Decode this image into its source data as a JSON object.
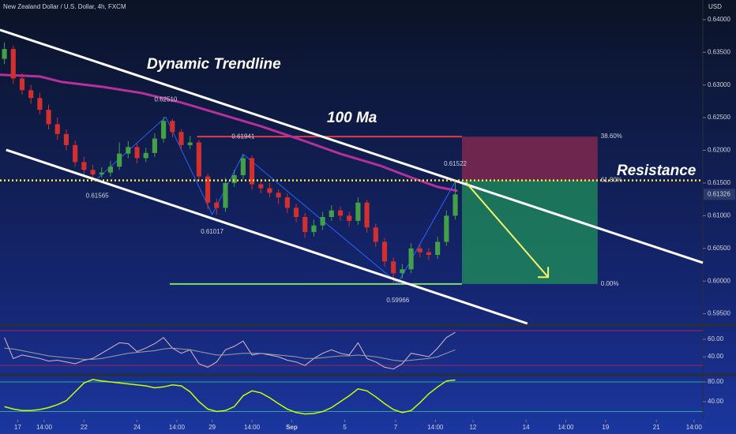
{
  "chart_data": {
    "type": "candlestick",
    "title": "New Zealand Dollar / U.S. Dollar, 4h, FXCM",
    "currency": "USD",
    "x": [
      1,
      3,
      5,
      7,
      9,
      11,
      13,
      15,
      17,
      19,
      21,
      23,
      25,
      27,
      29,
      31,
      33,
      35,
      37,
      39,
      41,
      43,
      45,
      47,
      49,
      51,
      53,
      55,
      57,
      59,
      61,
      63,
      65,
      67,
      69,
      71,
      73,
      75,
      77,
      79,
      81,
      83,
      85,
      87,
      89,
      91,
      93,
      95,
      97,
      99,
      101,
      103
    ],
    "open": [
      0.634,
      0.6355,
      0.631,
      0.6292,
      0.628,
      0.6262,
      0.624,
      0.6225,
      0.6208,
      0.6182,
      0.617,
      0.6163,
      0.6166,
      0.6175,
      0.6195,
      0.6205,
      0.6188,
      0.6196,
      0.6218,
      0.6245,
      0.6228,
      0.6208,
      0.6212,
      0.616,
      0.612,
      0.6112,
      0.615,
      0.6162,
      0.6188,
      0.6148,
      0.6142,
      0.6135,
      0.6128,
      0.6112,
      0.6098,
      0.6075,
      0.6085,
      0.6098,
      0.6108,
      0.61,
      0.6092,
      0.612,
      0.6082,
      0.606,
      0.603,
      0.6012,
      0.6018,
      0.605,
      0.6044,
      0.604,
      0.606,
      0.61
    ],
    "high": [
      0.6365,
      0.636,
      0.6318,
      0.63,
      0.6288,
      0.627,
      0.625,
      0.6232,
      0.6215,
      0.619,
      0.6178,
      0.6174,
      0.6184,
      0.6212,
      0.6214,
      0.621,
      0.6204,
      0.6226,
      0.6251,
      0.6248,
      0.6232,
      0.6222,
      0.6216,
      0.6164,
      0.6126,
      0.6158,
      0.617,
      0.61941,
      0.6192,
      0.6156,
      0.615,
      0.614,
      0.6134,
      0.6118,
      0.6104,
      0.6094,
      0.6106,
      0.6116,
      0.6114,
      0.6106,
      0.6128,
      0.6124,
      0.6088,
      0.6066,
      0.6036,
      0.6026,
      0.6058,
      0.6056,
      0.605,
      0.6068,
      0.6108,
      0.61522
    ],
    "low": [
      0.6332,
      0.6302,
      0.6285,
      0.6271,
      0.6255,
      0.6232,
      0.6216,
      0.62,
      0.6175,
      0.6162,
      0.61565,
      0.6158,
      0.616,
      0.617,
      0.6188,
      0.618,
      0.6182,
      0.619,
      0.6212,
      0.622,
      0.62,
      0.6202,
      0.6152,
      0.611,
      0.61017,
      0.6106,
      0.6144,
      0.6156,
      0.614,
      0.6134,
      0.6128,
      0.6118,
      0.6104,
      0.609,
      0.6066,
      0.6068,
      0.6078,
      0.6092,
      0.6092,
      0.6084,
      0.6086,
      0.6074,
      0.6052,
      0.6022,
      0.59966,
      0.6004,
      0.6012,
      0.6036,
      0.6032,
      0.6034,
      0.6054,
      0.6094
    ],
    "close": [
      0.6355,
      0.631,
      0.6292,
      0.628,
      0.6262,
      0.624,
      0.6225,
      0.6208,
      0.6182,
      0.617,
      0.6163,
      0.6166,
      0.6175,
      0.6195,
      0.6205,
      0.6188,
      0.6196,
      0.6218,
      0.6245,
      0.6228,
      0.6208,
      0.6212,
      0.616,
      0.612,
      0.6112,
      0.615,
      0.6162,
      0.6188,
      0.6148,
      0.6142,
      0.6135,
      0.6128,
      0.6112,
      0.6098,
      0.6075,
      0.6085,
      0.6098,
      0.6108,
      0.61,
      0.6092,
      0.612,
      0.6082,
      0.606,
      0.603,
      0.6012,
      0.6018,
      0.605,
      0.6044,
      0.604,
      0.606,
      0.61,
      0.61326
    ],
    "up_color": "#43a047",
    "down_color": "#d32f2f",
    "xlim": [
      0,
      159
    ],
    "xticks": [
      {
        "value": 4,
        "label": "17"
      },
      {
        "value": 10,
        "label": "14:00"
      },
      {
        "value": 19,
        "label": "22"
      },
      {
        "value": 31,
        "label": "24"
      },
      {
        "value": 40,
        "label": "14:00"
      },
      {
        "value": 48,
        "label": "29"
      },
      {
        "value": 57,
        "label": "14:00"
      },
      {
        "value": 66,
        "label": "Sep"
      },
      {
        "value": 78,
        "label": "5"
      },
      {
        "value": 89.5,
        "label": "7"
      },
      {
        "value": 98.5,
        "label": "14:00"
      },
      {
        "value": 107,
        "label": "12"
      },
      {
        "value": 119,
        "label": "14"
      },
      {
        "value": 128,
        "label": "14:00"
      },
      {
        "value": 137,
        "label": "19"
      },
      {
        "value": 148.5,
        "label": "21"
      },
      {
        "value": 157,
        "label": "14:00"
      }
    ],
    "ylim": [
      0.5935,
      0.643
    ],
    "yticks": [
      {
        "value": 0.595,
        "label": "0.59500"
      },
      {
        "value": 0.6,
        "label": "0.60000"
      },
      {
        "value": 0.605,
        "label": "0.60500"
      },
      {
        "value": 0.61,
        "label": "0.61000"
      },
      {
        "value": 0.615,
        "label": "0.61500"
      },
      {
        "value": 0.62,
        "label": "0.62000"
      },
      {
        "value": 0.625,
        "label": "0.62500"
      },
      {
        "value": 0.63,
        "label": "0.63000"
      },
      {
        "value": 0.635,
        "label": "0.63500"
      },
      {
        "value": 0.64,
        "label": "0.64000"
      }
    ],
    "last_price": {
      "value": 0.61326,
      "label": "0.61326"
    },
    "ma": {
      "name": "100 Ma",
      "color": "#b5309a",
      "x": [
        0,
        9,
        14,
        23,
        32,
        41,
        50,
        59,
        68,
        77,
        86,
        93,
        99,
        103.5
      ],
      "values": [
        0.63155,
        0.6313,
        0.63046,
        0.62973,
        0.62877,
        0.62732,
        0.62551,
        0.6237,
        0.62164,
        0.61947,
        0.61766,
        0.61585,
        0.6144,
        0.6138
      ]
    },
    "trendline_label": "Dynamic Trendline",
    "trendlines": [
      {
        "x": [
          0,
          159
        ],
        "values": [
          0.63843,
          0.6028
        ]
      },
      {
        "x": [
          1.4,
          119.3
        ],
        "values": [
          0.62007,
          0.5935
        ]
      }
    ],
    "resistance": {
      "name": "Resistance",
      "value": 0.6154,
      "color": "#ffeb3b"
    },
    "pivots": {
      "x": [
        22,
        37.5,
        48,
        55,
        90,
        103
      ],
      "values": [
        0.61565,
        0.6251,
        0.61017,
        0.61941,
        0.59966,
        0.61522
      ],
      "value_labels": [
        "0.61565",
        "0.62510",
        "0.61017",
        "0.61941",
        "0.59966",
        "0.61522"
      ]
    },
    "position": {
      "x": [
        104.5,
        135.2
      ],
      "stop": 0.6221,
      "entry": 0.6154,
      "target": 0.59955,
      "stop_line_x": [
        44.6,
        104.5
      ],
      "target_line_x": [
        38.4,
        104.5
      ],
      "labels": [
        "38.60%",
        "61.80%",
        "0.00%"
      ],
      "arrow_x": [
        105.4,
        124
      ],
      "arrow_values": [
        0.6151,
        0.6006
      ]
    },
    "panes": [
      {
        "ylim": [
          22,
          73.6
        ],
        "yticks": [
          {
            "value": 60,
            "label": "60.00"
          },
          {
            "value": 40,
            "label": "40.00"
          }
        ],
        "bands": [
          70,
          30
        ],
        "series": [
          {
            "color": "#d8b6c8",
            "values": [
              62,
              38,
              42,
              40,
              38,
              35,
              36,
              34,
              32,
              36,
              38,
              44,
              50,
              56,
              55,
              46,
              50,
              55,
              62,
              50,
              44,
              48,
              32,
              28,
              34,
              48,
              52,
              58,
              42,
              44,
              42,
              40,
              36,
              34,
              30,
              38,
              44,
              48,
              44,
              42,
              56,
              38,
              34,
              28,
              26,
              32,
              44,
              42,
              40,
              50,
              62,
              68
            ]
          },
          {
            "color": "#9e9e9e",
            "values": [
              50,
              49,
              47,
              45,
              43,
              41,
              40,
              39,
              38,
              37,
              37,
              38,
              40,
              42,
              44,
              45,
              46,
              47,
              49,
              50,
              49,
              48,
              46,
              44,
              42,
              42,
              43,
              44,
              44,
              44,
              43,
              42,
              41,
              40,
              38,
              38,
              39,
              40,
              41,
              41,
              42,
              41,
              40,
              38,
              36,
              35,
              36,
              37,
              38,
              40,
              44,
              48
            ]
          }
        ]
      },
      {
        "ylim": [
          6.4,
          89.6
        ],
        "yticks": [
          {
            "value": 80,
            "label": "80.00"
          },
          {
            "value": 40,
            "label": "40.00"
          }
        ],
        "bands": [
          80,
          20
        ],
        "series": [
          {
            "color": "#c6ff00",
            "values": [
              30,
              25,
              22,
              22,
              24,
              28,
              34,
              42,
              60,
              78,
              85,
              82,
              80,
              78,
              76,
              74,
              72,
              68,
              70,
              74,
              72,
              60,
              40,
              25,
              20,
              22,
              30,
              52,
              62,
              58,
              48,
              36,
              25,
              18,
              15,
              16,
              20,
              28,
              40,
              52,
              66,
              62,
              50,
              36,
              24,
              18,
              22,
              38,
              56,
              70,
              82,
              84
            ]
          }
        ]
      }
    ]
  }
}
